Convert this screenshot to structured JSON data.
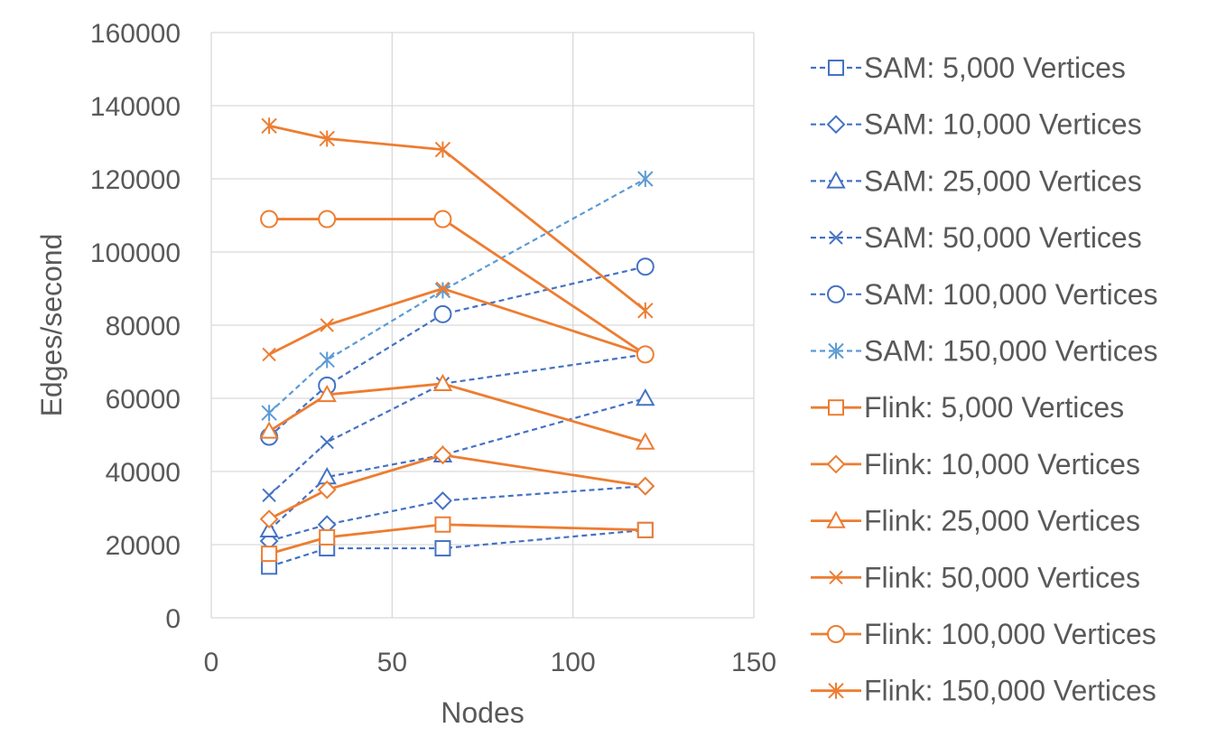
{
  "chart_data": {
    "type": "line",
    "title": "",
    "xlabel": "Nodes",
    "ylabel": "Edges/second",
    "xlim": [
      0,
      150
    ],
    "ylim": [
      0,
      160000
    ],
    "xticks": [
      0,
      50,
      100,
      150
    ],
    "yticks": [
      0,
      20000,
      40000,
      60000,
      80000,
      100000,
      120000,
      140000,
      160000
    ],
    "xtick_labels": [
      "0",
      "50",
      "100",
      "150"
    ],
    "ytick_labels": [
      "0",
      "20000",
      "40000",
      "60000",
      "80000",
      "100000",
      "120000",
      "140000",
      "160000"
    ],
    "grid": true,
    "legend_position": "right",
    "x": [
      16,
      32,
      64,
      120
    ],
    "series": [
      {
        "name": "SAM: 5,000 Vertices",
        "values": [
          14000,
          19000,
          19000,
          24000
        ],
        "color": "#4472C4",
        "dash": "dashed",
        "marker": "square"
      },
      {
        "name": "SAM: 10,000 Vertices",
        "values": [
          21000,
          25500,
          32000,
          36000
        ],
        "color": "#4472C4",
        "dash": "dashed",
        "marker": "diamond"
      },
      {
        "name": "SAM: 25,000 Vertices",
        "values": [
          24000,
          38500,
          44500,
          60000
        ],
        "color": "#4472C4",
        "dash": "dashed",
        "marker": "triangle"
      },
      {
        "name": "SAM: 50,000 Vertices",
        "values": [
          33500,
          48000,
          64000,
          72000
        ],
        "color": "#4472C4",
        "dash": "dashed",
        "marker": "x"
      },
      {
        "name": "SAM: 100,000 Vertices",
        "values": [
          49500,
          63500,
          83000,
          96000
        ],
        "color": "#4472C4",
        "dash": "dashed",
        "marker": "circle"
      },
      {
        "name": "SAM: 150,000 Vertices",
        "values": [
          56000,
          70500,
          89500,
          120000
        ],
        "color": "#5B9BD5",
        "dash": "dashed",
        "marker": "star"
      },
      {
        "name": "Flink: 5,000 Vertices",
        "values": [
          17500,
          22000,
          25500,
          24000
        ],
        "color": "#ED7D31",
        "dash": "solid",
        "marker": "square"
      },
      {
        "name": "Flink: 10,000 Vertices",
        "values": [
          27000,
          35000,
          44500,
          36000
        ],
        "color": "#ED7D31",
        "dash": "solid",
        "marker": "diamond"
      },
      {
        "name": "Flink: 25,000 Vertices",
        "values": [
          51000,
          61000,
          64000,
          48000
        ],
        "color": "#ED7D31",
        "dash": "solid",
        "marker": "triangle"
      },
      {
        "name": "Flink: 50,000 Vertices",
        "values": [
          72000,
          80000,
          90000,
          72000
        ],
        "color": "#ED7D31",
        "dash": "solid",
        "marker": "x"
      },
      {
        "name": "Flink: 100,000 Vertices",
        "values": [
          109000,
          109000,
          109000,
          72000
        ],
        "color": "#ED7D31",
        "dash": "solid",
        "marker": "circle"
      },
      {
        "name": "Flink: 150,000 Vertices",
        "values": [
          134500,
          131000,
          128000,
          84000
        ],
        "color": "#ED7D31",
        "dash": "solid",
        "marker": "star"
      }
    ]
  }
}
